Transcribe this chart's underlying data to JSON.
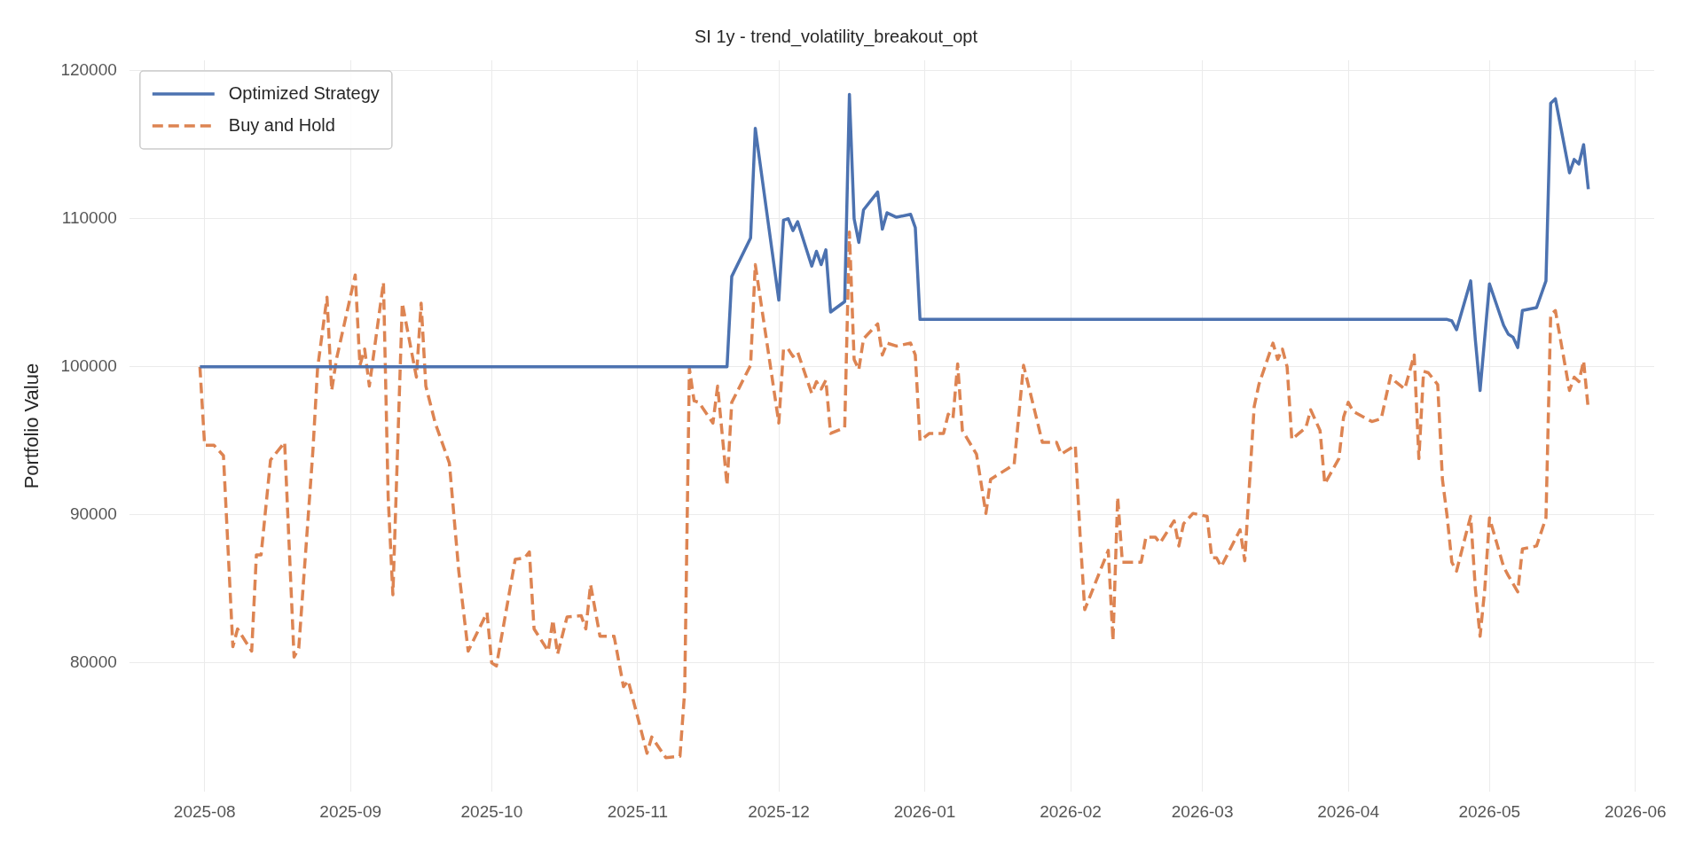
{
  "chart_data": {
    "type": "line",
    "title": "SI 1y - trend_volatility_breakout_opt",
    "ylabel": "Portfolio Value",
    "xlim": [
      "2025-07-16",
      "2026-06-05"
    ],
    "xticks": [
      "2025-08",
      "2025-09",
      "2025-10",
      "2025-11",
      "2025-12",
      "2026-01",
      "2026-02",
      "2026-03",
      "2026-04",
      "2026-05",
      "2026-06"
    ],
    "ylim": [
      71300,
      120700
    ],
    "yticks": [
      80000,
      90000,
      100000,
      110000,
      120000
    ],
    "grid": true,
    "legend": "top left",
    "marker": "none",
    "series": [
      {
        "name": "Optimized Strategy",
        "color": "#4c72b0",
        "line_style": "solid",
        "x": [
          "2025-07-31",
          "2025-11-20",
          "2025-11-21",
          "2025-11-25",
          "2025-11-26",
          "2025-12-01",
          "2025-12-02",
          "2025-12-03",
          "2025-12-04",
          "2025-12-05",
          "2025-12-08",
          "2025-12-09",
          "2025-12-10",
          "2025-12-11",
          "2025-12-12",
          "2025-12-15",
          "2025-12-16",
          "2025-12-17",
          "2025-12-18",
          "2025-12-19",
          "2025-12-22",
          "2025-12-23",
          "2025-12-24",
          "2025-12-26",
          "2025-12-29",
          "2025-12-30",
          "2025-12-31",
          "2026-04-22",
          "2026-04-23",
          "2026-04-24",
          "2026-04-27",
          "2026-04-28",
          "2026-04-29",
          "2026-05-01",
          "2026-05-04",
          "2026-05-05",
          "2026-05-06",
          "2026-05-07",
          "2026-05-08",
          "2026-05-11",
          "2026-05-13",
          "2026-05-14",
          "2026-05-15",
          "2026-05-18",
          "2026-05-19",
          "2026-05-20",
          "2026-05-21",
          "2026-05-22"
        ],
        "values": [
          100000,
          100000,
          106100,
          108700,
          116100,
          104500,
          109900,
          110000,
          109200,
          109800,
          106800,
          107800,
          106900,
          107900,
          103700,
          104400,
          118400,
          110000,
          108400,
          110600,
          111800,
          109300,
          110400,
          110100,
          110300,
          109400,
          103200,
          103200,
          103100,
          102500,
          105800,
          101800,
          98400,
          105600,
          102800,
          102200,
          102000,
          101300,
          103800,
          104000,
          105800,
          117800,
          118100,
          113100,
          114000,
          113700,
          115000,
          112000
        ]
      },
      {
        "name": "Buy and Hold",
        "color": "#dd8452",
        "line_style": "dashed",
        "x": [
          "2025-07-31",
          "2025-08-01",
          "2025-08-03",
          "2025-08-05",
          "2025-08-07",
          "2025-08-08",
          "2025-08-11",
          "2025-08-12",
          "2025-08-13",
          "2025-08-15",
          "2025-08-18",
          "2025-08-20",
          "2025-08-21",
          "2025-08-24",
          "2025-08-25",
          "2025-08-27",
          "2025-08-28",
          "2025-08-29",
          "2025-09-02",
          "2025-09-03",
          "2025-09-04",
          "2025-09-05",
          "2025-09-08",
          "2025-09-09",
          "2025-09-10",
          "2025-09-12",
          "2025-09-15",
          "2025-09-16",
          "2025-09-17",
          "2025-09-19",
          "2025-09-22",
          "2025-09-24",
          "2025-09-26",
          "2025-09-30",
          "2025-10-01",
          "2025-10-02",
          "2025-10-06",
          "2025-10-08",
          "2025-10-09",
          "2025-10-10",
          "2025-10-13",
          "2025-10-14",
          "2025-10-15",
          "2025-10-17",
          "2025-10-20",
          "2025-10-21",
          "2025-10-22",
          "2025-10-24",
          "2025-10-27",
          "2025-10-29",
          "2025-10-30",
          "2025-11-03",
          "2025-11-04",
          "2025-11-07",
          "2025-11-10",
          "2025-11-11",
          "2025-11-12",
          "2025-11-13",
          "2025-11-14",
          "2025-11-17",
          "2025-11-18",
          "2025-11-20",
          "2025-11-21",
          "2025-11-25",
          "2025-11-26",
          "2025-11-29",
          "2025-12-01",
          "2025-12-02",
          "2025-12-03",
          "2025-12-04",
          "2025-12-05",
          "2025-12-08",
          "2025-12-09",
          "2025-12-10",
          "2025-12-11",
          "2025-12-12",
          "2025-12-15",
          "2025-12-16",
          "2025-12-17",
          "2025-12-18",
          "2025-12-19",
          "2025-12-22",
          "2025-12-23",
          "2025-12-24",
          "2025-12-26",
          "2025-12-29",
          "2025-12-30",
          "2025-12-31",
          "2026-01-02",
          "2026-01-05",
          "2026-01-06",
          "2026-01-07",
          "2026-01-08",
          "2026-01-09",
          "2026-01-12",
          "2026-01-14",
          "2026-01-15",
          "2026-01-20",
          "2026-01-22",
          "2026-01-26",
          "2026-01-29",
          "2026-01-30",
          "2026-02-02",
          "2026-02-03",
          "2026-02-04",
          "2026-02-09",
          "2026-02-10",
          "2026-02-11",
          "2026-02-12",
          "2026-02-16",
          "2026-02-17",
          "2026-02-19",
          "2026-02-20",
          "2026-02-23",
          "2026-02-24",
          "2026-02-25",
          "2026-02-27",
          "2026-03-02",
          "2026-03-03",
          "2026-03-04",
          "2026-03-05",
          "2026-03-09",
          "2026-03-10",
          "2026-03-12",
          "2026-03-13",
          "2026-03-16",
          "2026-03-17",
          "2026-03-18",
          "2026-03-19",
          "2026-03-20",
          "2026-03-23",
          "2026-03-24",
          "2026-03-26",
          "2026-03-27",
          "2026-03-30",
          "2026-03-31",
          "2026-04-01",
          "2026-04-02",
          "2026-04-06",
          "2026-04-08",
          "2026-04-10",
          "2026-04-11",
          "2026-04-13",
          "2026-04-15",
          "2026-04-16",
          "2026-04-17",
          "2026-04-18",
          "2026-04-20",
          "2026-04-21",
          "2026-04-22",
          "2026-04-23",
          "2026-04-24",
          "2026-04-26",
          "2026-04-27",
          "2026-04-28",
          "2026-04-29",
          "2026-04-30",
          "2026-05-01",
          "2026-05-04",
          "2026-05-05",
          "2026-05-07",
          "2026-05-08",
          "2026-05-11",
          "2026-05-13",
          "2026-05-14",
          "2026-05-15",
          "2026-05-18",
          "2026-05-19",
          "2026-05-20",
          "2026-05-21",
          "2026-05-22"
        ],
        "values": [
          100000,
          94700,
          94700,
          94000,
          81100,
          82300,
          80800,
          87300,
          87300,
          93700,
          94900,
          80400,
          81000,
          94300,
          99900,
          104700,
          98400,
          100500,
          106200,
          100100,
          101200,
          98700,
          105700,
          91200,
          84600,
          104300,
          99300,
          104300,
          98700,
          96200,
          93500,
          86200,
          80800,
          83400,
          80000,
          79800,
          87000,
          87100,
          87500,
          82300,
          80800,
          82900,
          80600,
          83100,
          83200,
          82300,
          85300,
          81800,
          81800,
          78400,
          78800,
          73900,
          75000,
          73600,
          73700,
          78100,
          99900,
          97700,
          97600,
          96200,
          98700,
          92000,
          97600,
          100100,
          106900,
          100500,
          96200,
          101200,
          101200,
          100700,
          101000,
          98200,
          99000,
          98500,
          99100,
          95500,
          95900,
          109100,
          100500,
          99800,
          101900,
          102900,
          100800,
          101600,
          101400,
          101600,
          100800,
          95000,
          95500,
          95500,
          96800,
          96500,
          100200,
          95700,
          94100,
          90100,
          92400,
          93400,
          100100,
          94900,
          94900,
          94100,
          94700,
          88700,
          83600,
          87600,
          81500,
          91200,
          86800,
          86800,
          88500,
          88500,
          88100,
          89600,
          87900,
          89400,
          90100,
          89900,
          87100,
          87100,
          86500,
          89000,
          86900,
          97300,
          98800,
          101600,
          100500,
          101200,
          100000,
          95100,
          95900,
          97100,
          95700,
          92100,
          93800,
          96600,
          97600,
          97000,
          96300,
          96500,
          99400,
          99000,
          98500,
          100800,
          93800,
          99700,
          99600,
          98800,
          92400,
          89900,
          86800,
          86200,
          88700,
          89900,
          85000,
          81800,
          85000,
          89800,
          86500,
          85900,
          84800,
          87700,
          87900,
          89800,
          103500,
          103800,
          98400,
          99300,
          99000,
          100400,
          97100
        ]
      }
    ]
  }
}
